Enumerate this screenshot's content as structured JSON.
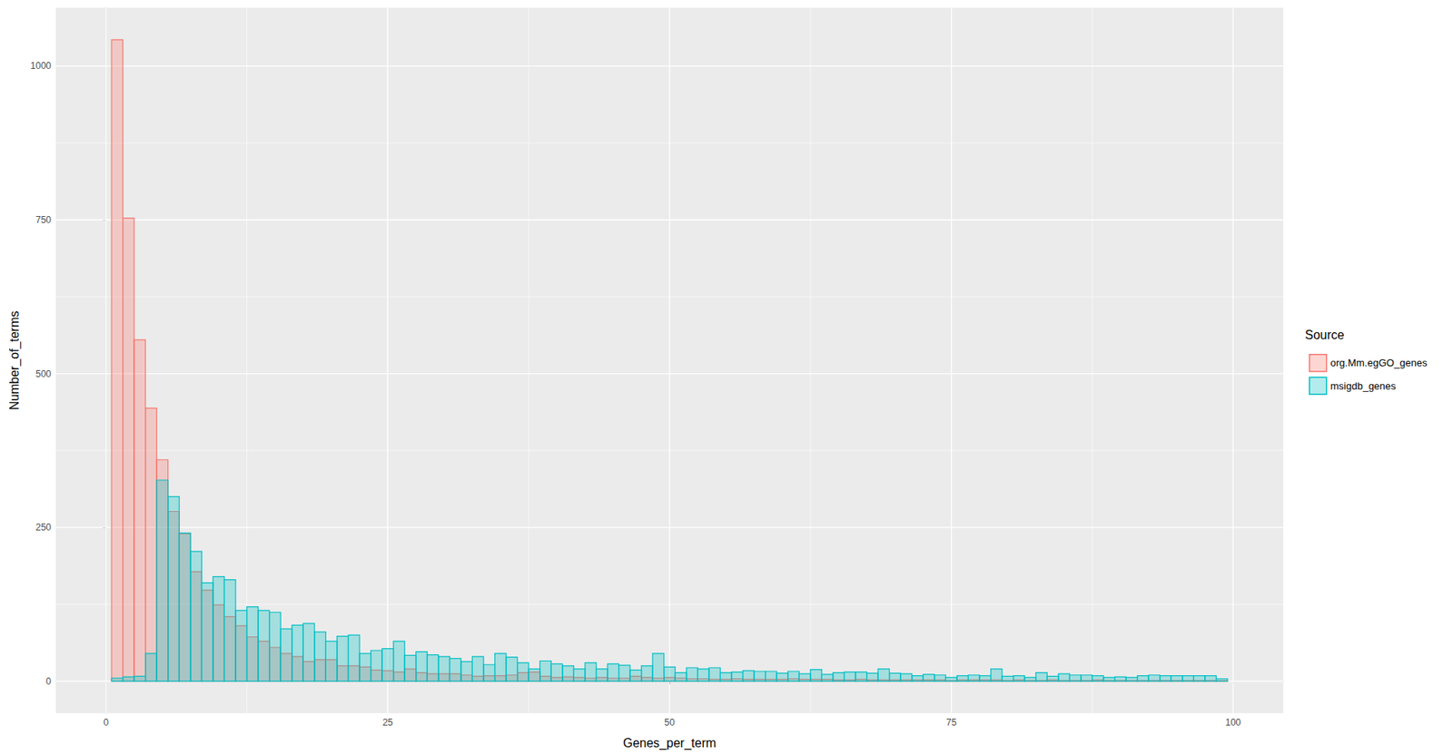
{
  "chart_data": {
    "type": "histogram",
    "x_label": "Genes_per_term",
    "y_label": "Number_of_terms",
    "legend_title": "Source",
    "legend": "right",
    "grid": true,
    "bins": [
      0.5,
      1.5,
      2.5,
      3.5,
      4.5,
      5.5,
      6.5,
      7.5,
      8.5,
      9.5,
      10.5,
      11.5,
      12.5,
      13.5,
      14.5,
      15.5,
      16.5,
      17.5,
      18.5,
      19.5,
      20.5,
      21.5,
      22.5,
      23.5,
      24.5,
      25.5,
      26.5,
      27.5,
      28.5,
      29.5,
      30.5,
      31.5,
      32.5,
      33.5,
      34.5,
      35.5,
      36.5,
      37.5,
      38.5,
      39.5,
      40.5,
      41.5,
      42.5,
      43.5,
      44.5,
      45.5,
      46.5,
      47.5,
      48.5,
      49.5,
      50.5,
      51.5,
      52.5,
      53.5,
      54.5,
      55.5,
      56.5,
      57.5,
      58.5,
      59.5,
      60.5,
      61.5,
      62.5,
      63.5,
      64.5,
      65.5,
      66.5,
      67.5,
      68.5,
      69.5,
      70.5,
      71.5,
      72.5,
      73.5,
      74.5,
      75.5,
      76.5,
      77.5,
      78.5,
      79.5,
      80.5,
      81.5,
      82.5,
      83.5,
      84.5,
      85.5,
      86.5,
      87.5,
      88.5,
      89.5,
      90.5,
      91.5,
      92.5,
      93.5,
      94.5,
      95.5,
      96.5,
      97.5,
      98.5,
      99.5
    ],
    "series": [
      {
        "name": "org.Mm.egGO_genes",
        "color": "#F8766D",
        "values": [
          1043,
          753,
          555,
          444,
          360,
          276,
          240,
          178,
          148,
          124,
          105,
          90,
          72,
          65,
          55,
          45,
          40,
          32,
          35,
          35,
          25,
          25,
          23,
          18,
          17,
          15,
          20,
          14,
          12,
          12,
          12,
          10,
          8,
          9,
          9,
          10,
          14,
          15,
          8,
          6,
          7,
          6,
          5,
          6,
          5,
          5,
          8,
          6,
          5,
          6,
          5,
          4,
          4,
          3,
          3,
          4,
          3,
          3,
          3,
          3,
          4,
          3,
          3,
          3,
          2,
          2,
          3,
          2,
          2,
          2,
          2,
          2,
          2,
          2,
          1,
          2,
          2,
          2,
          2,
          1,
          2,
          1,
          1,
          2,
          1,
          1,
          1,
          2,
          1,
          1,
          1,
          1,
          1,
          1,
          1,
          1,
          1,
          1,
          1
        ]
      },
      {
        "name": "msigdb_genes",
        "color": "#00BFC4",
        "values": [
          5,
          7,
          8,
          45,
          327,
          300,
          241,
          211,
          160,
          170,
          165,
          115,
          121,
          115,
          112,
          85,
          91,
          94,
          80,
          65,
          73,
          75,
          45,
          50,
          53,
          65,
          42,
          48,
          43,
          40,
          37,
          32,
          40,
          27,
          45,
          39,
          30,
          20,
          33,
          28,
          25,
          20,
          30,
          20,
          28,
          26,
          18,
          25,
          45,
          23,
          14,
          22,
          20,
          22,
          14,
          15,
          17,
          16,
          16,
          13,
          16,
          12,
          19,
          11,
          14,
          15,
          15,
          13,
          20,
          13,
          12,
          9,
          11,
          10,
          6,
          9,
          10,
          9,
          20,
          8,
          9,
          6,
          14,
          8,
          12,
          10,
          10,
          9,
          6,
          7,
          6,
          9,
          10,
          9,
          9,
          9,
          9,
          9,
          4
        ]
      }
    ],
    "xlim": [
      -4.45,
      104.45
    ],
    "xticks": [
      0,
      25,
      50,
      75,
      100
    ],
    "ylim": [
      -52,
      1095
    ],
    "yticks": [
      0,
      250,
      500,
      750,
      1000
    ]
  }
}
